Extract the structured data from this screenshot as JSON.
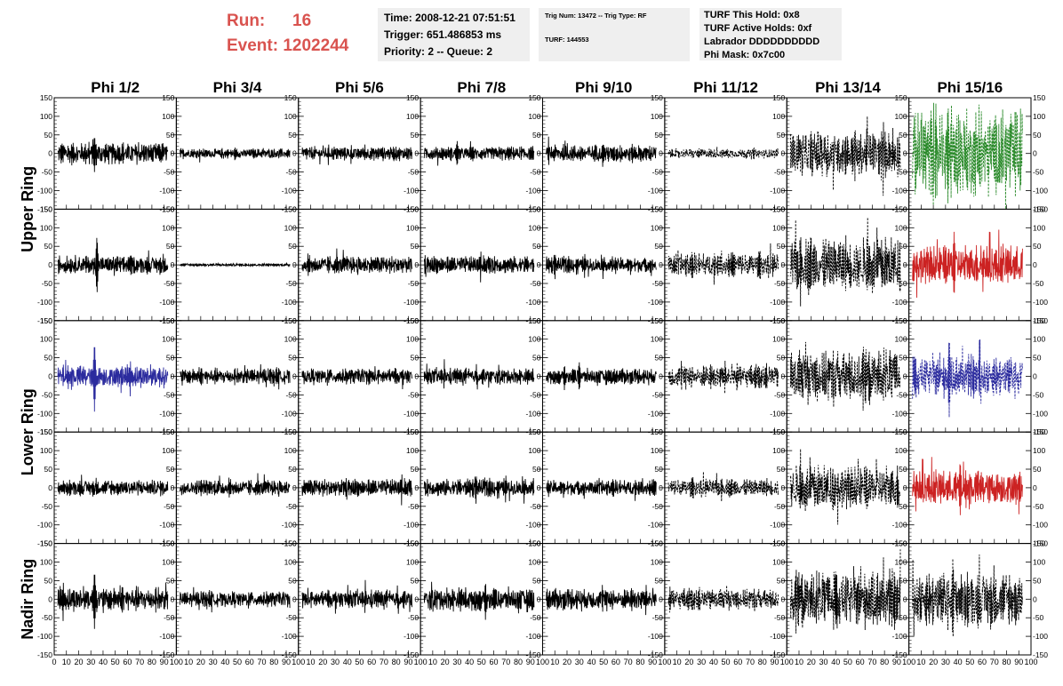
{
  "header": {
    "run_label": "Run:",
    "run_value": "16",
    "event_label": "Event:",
    "event_value": "1202244",
    "time_text": "Time: 2008-12-21 07:51:51",
    "trigger_text": "Trigger: 651.486853 ms",
    "priority_text": "Priority: 2 -- Queue: 2",
    "trig_text": "Trig Num: 13472 -- Trig Type: RF",
    "turf_text": "TURF: 144553",
    "hold_text": "TURF This Hold: 0x8",
    "active_holds_text": "TURF Active Holds: 0xf",
    "labrador_text": "Labrador DDDDDDDDDD",
    "phi_mask_text": "Phi Mask: 0x7c00"
  },
  "chart_data": {
    "type": "line",
    "columns": [
      "Phi 1/2",
      "Phi 3/4",
      "Phi 5/6",
      "Phi 7/8",
      "Phi 9/10",
      "Phi 11/12",
      "Phi 13/14",
      "Phi 15/16"
    ],
    "ring_labels": [
      "Upper Ring",
      "Lower Ring",
      "Nadir Ring"
    ],
    "xlim": [
      0,
      100
    ],
    "ylim": [
      -150,
      150
    ],
    "yticks": [
      -150,
      -100,
      -50,
      0,
      50,
      100,
      150
    ],
    "xtick_labels": [
      "0",
      "10",
      "20",
      "30",
      "40",
      "50",
      "60",
      "70",
      "80",
      "90",
      "100"
    ],
    "waveform_colors": {
      "black": "#000000",
      "blue": "#2b2b9e",
      "red": "#cc2222",
      "green": "#2a8a2a"
    },
    "rows": [
      {
        "cells": [
          {
            "amp": 22,
            "spike": [
              33,
              50
            ],
            "color": "black",
            "dashed": false
          },
          {
            "amp": 10,
            "color": "black",
            "dashed": false
          },
          {
            "amp": 14,
            "color": "black",
            "dashed": false
          },
          {
            "amp": 14,
            "spike": [
              30,
              35
            ],
            "color": "black",
            "dashed": false
          },
          {
            "amp": 18,
            "color": "black",
            "dashed": false
          },
          {
            "amp": 10,
            "color": "black",
            "dashed": true
          },
          {
            "amp": 45,
            "color": "black",
            "dashed": true
          },
          {
            "amp": 90,
            "spike": [
              32,
              140
            ],
            "color": "green",
            "dashed": true
          }
        ]
      },
      {
        "cells": [
          {
            "amp": 18,
            "spike": [
              35,
              80
            ],
            "color": "black",
            "dashed": false
          },
          {
            "amp": 3,
            "color": "black",
            "dashed": false
          },
          {
            "amp": 18,
            "color": "black",
            "dashed": false
          },
          {
            "amp": 18,
            "color": "black",
            "dashed": false
          },
          {
            "amp": 16,
            "color": "black",
            "dashed": false
          },
          {
            "amp": 24,
            "color": "black",
            "dashed": true
          },
          {
            "amp": 55,
            "color": "black",
            "dashed": true
          },
          {
            "amp": 40,
            "spike": [
              37,
              90
            ],
            "color": "red",
            "dashed": false
          }
        ]
      },
      {
        "cells": [
          {
            "amp": 22,
            "spike": [
              33,
              95
            ],
            "color": "blue",
            "dashed": false
          },
          {
            "amp": 16,
            "color": "black",
            "dashed": false
          },
          {
            "amp": 16,
            "color": "black",
            "dashed": false
          },
          {
            "amp": 16,
            "color": "black",
            "dashed": false
          },
          {
            "amp": 16,
            "spike": [
              30,
              40
            ],
            "color": "black",
            "dashed": false
          },
          {
            "amp": 24,
            "color": "black",
            "dashed": true
          },
          {
            "amp": 55,
            "color": "black",
            "dashed": true
          },
          {
            "amp": 40,
            "spike": [
              33,
              110
            ],
            "color": "blue",
            "dashed": true
          }
        ]
      },
      {
        "cells": [
          {
            "amp": 16,
            "color": "black",
            "dashed": false
          },
          {
            "amp": 16,
            "color": "black",
            "dashed": false
          },
          {
            "amp": 18,
            "color": "black",
            "dashed": false
          },
          {
            "amp": 18,
            "color": "black",
            "dashed": false
          },
          {
            "amp": 16,
            "color": "black",
            "dashed": false
          },
          {
            "amp": 18,
            "color": "black",
            "dashed": true
          },
          {
            "amp": 45,
            "color": "black",
            "dashed": true
          },
          {
            "amp": 35,
            "spike": [
              42,
              75
            ],
            "color": "red",
            "dashed": false
          }
        ]
      },
      {
        "cells": [
          {
            "amp": 24,
            "spike": [
              33,
              80
            ],
            "color": "black",
            "dashed": false
          },
          {
            "amp": 16,
            "color": "black",
            "dashed": false
          },
          {
            "amp": 18,
            "color": "black",
            "dashed": false
          },
          {
            "amp": 24,
            "color": "black",
            "dashed": false
          },
          {
            "amp": 22,
            "color": "black",
            "dashed": false
          },
          {
            "amp": 22,
            "color": "black",
            "dashed": true
          },
          {
            "amp": 55,
            "color": "black",
            "dashed": true
          },
          {
            "amp": 55,
            "spike": [
              36,
              115
            ],
            "color": "black",
            "dashed": true
          }
        ]
      }
    ]
  }
}
